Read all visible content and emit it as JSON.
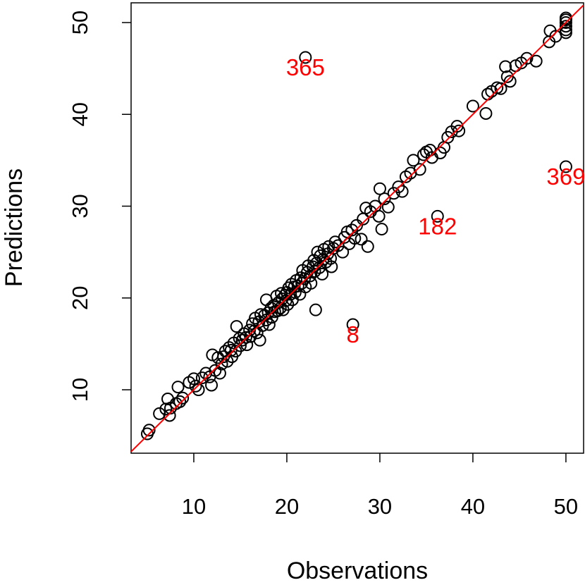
{
  "chart_data": {
    "type": "scatter",
    "x_label": "Observations",
    "y_label": "Predictions",
    "xlim": [
      3.26,
      51.9
    ],
    "ylim": [
      3.09,
      52.15
    ],
    "xticks": [
      10,
      20,
      30,
      40,
      50
    ],
    "yticks": [
      10,
      20,
      30,
      40,
      50
    ],
    "color": "#000000",
    "x": [
      5,
      5.2,
      6.3,
      7,
      7.2,
      7.4,
      7.5,
      8.1,
      8.3,
      8.5,
      8.8,
      9.5,
      10,
      10.2,
      10.5,
      10.9,
      11.3,
      11.7,
      11.9,
      12,
      12.3,
      12.6,
      12.8,
      13,
      13.2,
      13.4,
      13.6,
      13.8,
      14,
      14.1,
      14.3,
      14.5,
      14.6,
      14.9,
      15,
      15.2,
      15.4,
      15.6,
      15.7,
      16,
      16.1,
      16.3,
      16.5,
      16.6,
      16.8,
      17,
      17.1,
      17.2,
      17.4,
      17.6,
      17.8,
      17.8,
      18,
      18.1,
      18.3,
      18.4,
      18.6,
      18.7,
      18.9,
      19,
      19.1,
      19.3,
      19.4,
      19.5,
      19.6,
      19.8,
      19.9,
      20,
      20.1,
      20.2,
      20.4,
      20.5,
      20.6,
      20.8,
      20.9,
      21,
      21.2,
      21.4,
      21.5,
      21.6,
      21.7,
      21.9,
      22,
      22.2,
      22.3,
      22.5,
      22.6,
      22.8,
      22.9,
      23,
      23.1,
      23.2,
      23.3,
      23.5,
      23.6,
      23.8,
      23.9,
      24,
      24.2,
      24.4,
      24.5,
      24.7,
      24.8,
      25,
      25.2,
      25.5,
      26,
      26.2,
      26.5,
      26.7,
      27,
      27.3,
      27.5,
      28,
      28.2,
      28.5,
      28.7,
      29,
      29.5,
      29.9,
      30,
      30.2,
      30.5,
      30.9,
      31.5,
      32,
      32.4,
      32.8,
      33.3,
      33.6,
      34.3,
      34.7,
      35,
      35.4,
      35.6,
      36.5,
      36.9,
      37.3,
      37.7,
      38.3,
      38.5,
      40,
      41.4,
      41.6,
      42,
      42.6,
      43,
      43.5,
      43.7,
      44,
      44.6,
      45.2,
      45.8,
      46.8,
      48.2,
      48.3,
      48.9,
      50,
      50,
      50,
      50,
      50,
      50
    ],
    "values": [
      5.2,
      5.6,
      7.4,
      7.9,
      9,
      7.2,
      8,
      8.5,
      10.3,
      8.7,
      9.1,
      10.8,
      11.2,
      10.4,
      10,
      11.3,
      11.8,
      11.4,
      10.5,
      13.8,
      12.1,
      13.5,
      11.8,
      12.8,
      13.6,
      14.2,
      13.1,
      14.6,
      14.3,
      13.6,
      15.1,
      14.2,
      16.9,
      15.6,
      14.8,
      15.4,
      16.1,
      15.7,
      14.9,
      16.5,
      15.8,
      17.2,
      16.4,
      17.8,
      16.2,
      17.4,
      15.4,
      18.2,
      17,
      18.1,
      17.6,
      19.8,
      18.4,
      17.1,
      18.9,
      17.9,
      19.2,
      18.5,
      20.2,
      18.6,
      19.5,
      18.9,
      20.5,
      19.9,
      18.7,
      20.3,
      19.7,
      20.6,
      19.3,
      21.1,
      20.4,
      21.5,
      19.8,
      21.2,
      20.6,
      21.9,
      21.3,
      20.4,
      22.2,
      21.6,
      23,
      22.1,
      21.2,
      22.8,
      23.5,
      22.4,
      21.6,
      23.4,
      24.1,
      22.9,
      18.7,
      23.8,
      25,
      23.3,
      24.6,
      22.6,
      24.2,
      25.3,
      23.9,
      24.8,
      25.6,
      24.3,
      23.4,
      25.4,
      26.1,
      25.7,
      25,
      26.6,
      27.2,
      25.9,
      27.4,
      26.5,
      27.9,
      26.4,
      28.6,
      29.8,
      25.6,
      29.4,
      30,
      28.9,
      31.9,
      27.5,
      30.8,
      29.9,
      31.4,
      32.1,
      31.6,
      33.2,
      33.6,
      35,
      34,
      35.6,
      35.9,
      36.1,
      35.3,
      35.8,
      36.4,
      37.5,
      38.1,
      38.7,
      38.2,
      40.9,
      40.1,
      42.2,
      42.5,
      42.9,
      42.8,
      45.2,
      44.1,
      43.6,
      45.3,
      45.6,
      46.1,
      45.8,
      47.9,
      49.1,
      48.5,
      49.2,
      49.6,
      50,
      50.3,
      50.5,
      48.9
    ],
    "annotations": [
      {
        "text": "365",
        "x": 22,
        "y": 46.2
      },
      {
        "text": "8",
        "x": 27.1,
        "y": 17.1
      },
      {
        "text": "182",
        "x": 36.2,
        "y": 28.9
      },
      {
        "text": "369",
        "x": 50,
        "y": 34.3
      }
    ],
    "annotation_color": "#ff0000",
    "reference_line": {
      "intercept": 0,
      "slope": 1,
      "color": "#ff0000"
    }
  }
}
